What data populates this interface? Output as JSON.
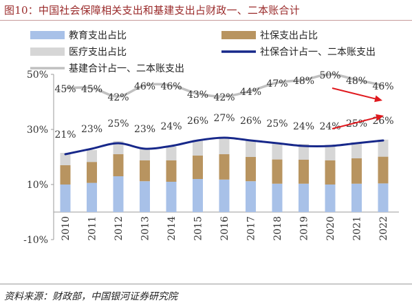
{
  "header": {
    "title": "图10：中国社会保障相关支出和基建支出占财政一、二本账合计"
  },
  "footer": {
    "source": "资料来源：财政部，中国银河证券研究院"
  },
  "chart_data": {
    "type": "bar",
    "categories": [
      "2010",
      "2011",
      "2012",
      "2013",
      "2014",
      "2015",
      "2016",
      "2017",
      "2018",
      "2019",
      "2020",
      "2021",
      "2022"
    ],
    "ylim": [
      -10,
      50
    ],
    "yticks": [
      "50%",
      "30%",
      "10%",
      "-10%"
    ],
    "ytick_values": [
      50,
      30,
      10,
      -10
    ],
    "series": [
      {
        "name": "教育支出占比",
        "kind": "stacked-bar",
        "color": "#a8c1e8",
        "values": [
          10.0,
          10.6,
          13.0,
          11.2,
          11.0,
          12.0,
          11.8,
          11.2,
          10.3,
          10.3,
          10.0,
          10.3,
          10.4
        ]
      },
      {
        "name": "社保支出占比",
        "kind": "stacked-bar",
        "color": "#b89460",
        "values": [
          7.0,
          7.6,
          8.0,
          7.6,
          7.8,
          8.5,
          9.2,
          8.8,
          8.8,
          8.7,
          8.8,
          9.2,
          9.7
        ]
      },
      {
        "name": "医疗支出占比",
        "kind": "stacked-bar",
        "color": "#d6d6d6",
        "values": [
          4.5,
          4.3,
          4.8,
          4.3,
          5.0,
          5.7,
          6.0,
          6.0,
          5.8,
          5.7,
          5.6,
          5.8,
          6.2
        ]
      },
      {
        "name": "社保合计占一、二本账支出",
        "kind": "line",
        "color": "#17288a",
        "values": [
          21,
          23,
          25,
          23,
          24,
          26,
          27,
          26,
          25,
          24,
          24,
          25,
          26
        ],
        "labels": [
          "21%",
          "23%",
          "25%",
          "23%",
          "24%",
          "26%",
          "27%",
          "26%",
          "25%",
          "24%",
          "24%",
          "25%",
          "26%"
        ]
      },
      {
        "name": "基建合计占一、二本账支出",
        "kind": "line",
        "color": "#c0c0c0",
        "values": [
          45,
          45,
          42,
          46,
          46,
          43,
          42,
          44,
          47,
          48,
          50,
          48,
          46
        ],
        "labels": [
          "45%",
          "45%",
          "42%",
          "46%",
          "46%",
          "43%",
          "42%",
          "44%",
          "47%",
          "48%",
          "50%",
          "48%",
          "46%"
        ]
      }
    ],
    "annotations": [
      {
        "type": "arrow",
        "color": "#e0191e",
        "from_year": "2020",
        "to_year": "2022",
        "series": "基建合计占一、二本账支出",
        "direction": "down"
      },
      {
        "type": "arrow",
        "color": "#e0191e",
        "from_year": "2020",
        "to_year": "2022",
        "series": "社保合计占一、二本账支出",
        "direction": "up"
      }
    ],
    "legend_position": "top"
  }
}
